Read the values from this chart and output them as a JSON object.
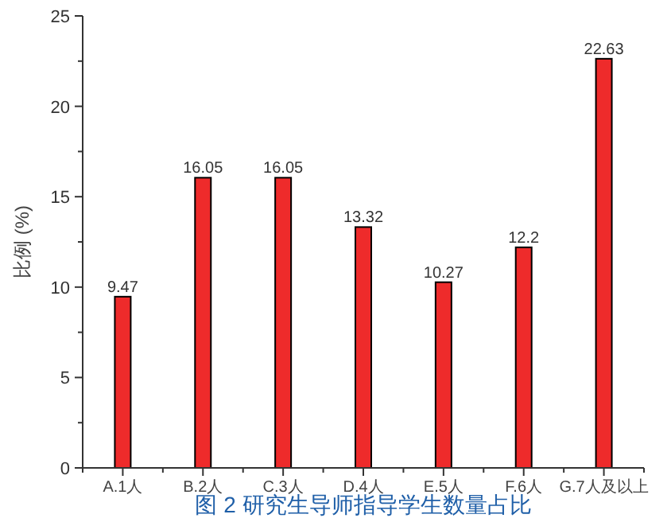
{
  "chart_data": {
    "type": "bar",
    "title": "图 2 研究生导师指导学生数量占比",
    "ylabel": "比例 (%)",
    "categories": [
      "A.1人",
      "B.2人",
      "C.3人",
      "D.4人",
      "E.5人",
      "F.6人",
      "G.7人及以上"
    ],
    "values": [
      9.47,
      16.05,
      16.05,
      13.32,
      10.27,
      12.2,
      22.63
    ],
    "color": "#ee2b2b",
    "ylim": [
      0,
      25
    ],
    "yticks": [
      0,
      {
        "value": 2.5,
        "label": null
      },
      5,
      {
        "value": 7.5,
        "label": null
      },
      10,
      {
        "value": 12.5,
        "label": null
      },
      15,
      {
        "value": 17.5,
        "label": null
      },
      20,
      {
        "value": 22.5,
        "label": null
      },
      25
    ],
    "data_labels": true,
    "grid": false
  }
}
